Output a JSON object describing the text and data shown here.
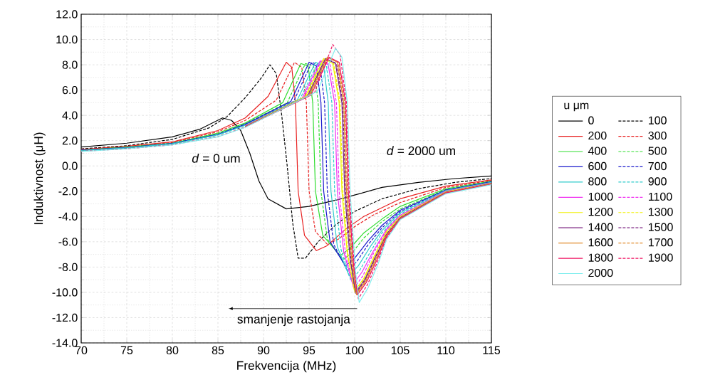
{
  "chart_data": {
    "type": "line",
    "xlabel": "Frekvencija (MHz)",
    "ylabel": "Induktivnost (μH)",
    "legend_title": "u μm",
    "xlim": [
      70,
      115
    ],
    "ylim": [
      -14,
      12
    ],
    "xticks": [
      70,
      75,
      80,
      85,
      90,
      95,
      100,
      105,
      110,
      115
    ],
    "yticks": [
      {
        "value": -14,
        "label": "-14.0"
      },
      {
        "value": -12,
        "label": "-12.0"
      },
      {
        "value": -10,
        "label": "-10.0"
      },
      {
        "value": -8,
        "label": "-8.0"
      },
      {
        "value": -6,
        "label": "-6.0"
      },
      {
        "value": -4,
        "label": "-4.0"
      },
      {
        "value": -2,
        "label": "-2.0"
      },
      {
        "value": 0,
        "label": "0.0"
      },
      {
        "value": 2,
        "label": "2.0"
      },
      {
        "value": 4,
        "label": "4.0"
      },
      {
        "value": 6,
        "label": "6.0"
      },
      {
        "value": 8,
        "label": "8.0"
      },
      {
        "value": 10,
        "label": "10.0"
      },
      {
        "value": 12,
        "label": "12.0"
      }
    ],
    "grid": true,
    "legend": "right",
    "annotations": [
      "*d* = 0 um",
      "*d* = 2000 um",
      "smanjenje rastojanja"
    ],
    "series": [
      {
        "name": "0",
        "color": "#000000",
        "line_style": "solid",
        "x": [
          70,
          75,
          80,
          83,
          85.5,
          86.5,
          87.5,
          88.5,
          89.5,
          90.5,
          92.5,
          95,
          98,
          100,
          103,
          107,
          111,
          115
        ],
        "values": [
          1.5,
          1.8,
          2.3,
          2.9,
          3.8,
          3.6,
          2.8,
          1.0,
          -1.2,
          -2.6,
          -3.4,
          -3.2,
          -2.7,
          -2.3,
          -1.7,
          -1.3,
          -1.0,
          -0.8
        ]
      },
      {
        "name": "100",
        "color": "#000000",
        "line_style": "dashed",
        "x": [
          70,
          75,
          80,
          84,
          86,
          88,
          89.8,
          90.7,
          91.4,
          92,
          92.6,
          93.2,
          93.8,
          94.6,
          96,
          98,
          100,
          103,
          107,
          111,
          115
        ],
        "values": [
          1.35,
          1.6,
          2.1,
          3.0,
          3.9,
          5.4,
          7.0,
          8.0,
          7.3,
          4.0,
          0,
          -4.5,
          -7.3,
          -7.3,
          -6.0,
          -4.6,
          -3.6,
          -2.6,
          -1.8,
          -1.3,
          -1.0
        ]
      },
      {
        "name": "200",
        "color": "#e82020",
        "line_style": "solid",
        "x": [
          70,
          75,
          80,
          85,
          88,
          90.5,
          92.5,
          93.1,
          93.5,
          93.8,
          94.5,
          95.8,
          97,
          99,
          101,
          105,
          110,
          115
        ],
        "values": [
          1.3,
          1.55,
          1.9,
          2.8,
          3.8,
          5.5,
          8.2,
          7.8,
          5.0,
          -2.0,
          -5.5,
          -6.7,
          -6.3,
          -5.0,
          -4.0,
          -2.6,
          -1.6,
          -1.1
        ]
      },
      {
        "name": "300",
        "color": "#e82020",
        "line_style": "dashed",
        "x": [
          70,
          75,
          80,
          85,
          88,
          91.4,
          93.4,
          94.2,
          94.7,
          95.0,
          95.7,
          97.0,
          98.2,
          100,
          102,
          105,
          110,
          115
        ],
        "values": [
          1.28,
          1.5,
          1.85,
          2.7,
          3.6,
          5.2,
          8.2,
          7.8,
          5.0,
          -2.0,
          -5.2,
          -6.2,
          -5.8,
          -4.8,
          -3.9,
          -2.9,
          -1.7,
          -1.15
        ]
      },
      {
        "name": "400",
        "color": "#30dd30",
        "line_style": "solid",
        "x": [
          70,
          75,
          80,
          85,
          88,
          92.1,
          94.1,
          94.9,
          95.4,
          95.7,
          96.5,
          98.4,
          99.5,
          101,
          103,
          105,
          110,
          115
        ],
        "values": [
          1.25,
          1.5,
          1.8,
          2.6,
          3.4,
          5.0,
          8.1,
          7.9,
          5.0,
          -2.0,
          -5.5,
          -7.1,
          -6.5,
          -5.3,
          -4.2,
          -3.2,
          -1.8,
          -1.2
        ]
      },
      {
        "name": "500",
        "color": "#30dd30",
        "line_style": "dashed",
        "x": [
          70,
          75,
          80,
          85,
          88,
          92.6,
          94.6,
          95.5,
          96.0,
          96.3,
          97.0,
          98.7,
          99.7,
          101,
          103,
          105,
          110,
          115
        ],
        "values": [
          1.25,
          1.45,
          1.8,
          2.55,
          3.35,
          5.0,
          8.1,
          7.9,
          5.0,
          -2.0,
          -5.8,
          -7.4,
          -6.9,
          -5.7,
          -4.4,
          -3.4,
          -1.85,
          -1.25
        ]
      },
      {
        "name": "600",
        "color": "#1a1acc",
        "line_style": "solid",
        "x": [
          70,
          75,
          80,
          85,
          88,
          93.0,
          95.0,
          95.8,
          96.3,
          96.6,
          97.3,
          99.0,
          100,
          101.5,
          103,
          105,
          110,
          115
        ],
        "values": [
          1.24,
          1.45,
          1.78,
          2.5,
          3.3,
          5.1,
          8.2,
          7.9,
          5.0,
          -2.0,
          -6.0,
          -7.9,
          -7.3,
          -5.9,
          -4.7,
          -3.5,
          -1.9,
          -1.25
        ]
      },
      {
        "name": "700",
        "color": "#1a1acc",
        "line_style": "dashed",
        "x": [
          70,
          75,
          80,
          85,
          88,
          93.3,
          95.3,
          96.2,
          96.7,
          97.0,
          97.7,
          99.2,
          100.2,
          101.5,
          103,
          105,
          110,
          115
        ],
        "values": [
          1.23,
          1.44,
          1.76,
          2.48,
          3.25,
          5.1,
          8.2,
          7.9,
          5.0,
          -2.0,
          -6.2,
          -8.3,
          -7.6,
          -6.2,
          -4.9,
          -3.6,
          -1.9,
          -1.3
        ]
      },
      {
        "name": "800",
        "color": "#30cccc",
        "line_style": "solid",
        "x": [
          70,
          75,
          80,
          85,
          88,
          93.7,
          95.7,
          96.6,
          97.1,
          97.4,
          98.1,
          99.4,
          100.4,
          101.7,
          103,
          105,
          110,
          115
        ],
        "values": [
          1.22,
          1.43,
          1.75,
          2.46,
          3.22,
          5.2,
          8.2,
          7.9,
          5.0,
          -2.0,
          -6.4,
          -8.7,
          -7.9,
          -6.4,
          -5.1,
          -3.7,
          -1.95,
          -1.3
        ]
      },
      {
        "name": "900",
        "color": "#30cccc",
        "line_style": "dashed",
        "x": [
          70,
          75,
          80,
          85,
          88,
          94.0,
          96.0,
          96.9,
          97.5,
          97.8,
          98.5,
          99.6,
          100.6,
          101.8,
          103,
          105,
          110,
          115
        ],
        "values": [
          1.21,
          1.42,
          1.74,
          2.44,
          3.2,
          5.3,
          8.2,
          7.9,
          5.0,
          -2.0,
          -6.6,
          -9.1,
          -8.2,
          -6.7,
          -5.3,
          -3.8,
          -2.0,
          -1.3
        ]
      },
      {
        "name": "1000",
        "color": "#f030f0",
        "line_style": "solid",
        "x": [
          88,
          94.2,
          96.2,
          97.1,
          97.8,
          98.1,
          98.8,
          99.8,
          100.8,
          102,
          103.5,
          105,
          110,
          115
        ],
        "values": [
          3.18,
          5.3,
          8.3,
          8.0,
          5.0,
          -2.0,
          -6.8,
          -9.4,
          -8.4,
          -6.8,
          -5.0,
          -3.9,
          -2.0,
          -1.35
        ]
      },
      {
        "name": "1100",
        "color": "#f030f0",
        "line_style": "dashed",
        "x": [
          94.4,
          96.4,
          97.3,
          98.0,
          98.3,
          99.0,
          99.9,
          100.9,
          102,
          103.5,
          105,
          110,
          115
        ],
        "values": [
          5.4,
          8.4,
          8.0,
          5.0,
          -2.0,
          -7.0,
          -9.7,
          -8.7,
          -7.0,
          -5.1,
          -3.95,
          -2.05,
          -1.35
        ]
      },
      {
        "name": "1200",
        "color": "#f0f000",
        "line_style": "solid",
        "x": [
          88,
          94.6,
          96.6,
          97.6,
          98.3,
          98.6,
          99.2,
          100.0,
          101.0,
          102.1,
          103.5,
          105,
          110,
          115
        ],
        "values": [
          3.14,
          5.5,
          8.5,
          8.1,
          5.0,
          -2.0,
          -7.0,
          -9.9,
          -8.9,
          -7.2,
          -5.2,
          -4.0,
          -2.05,
          -1.38
        ]
      },
      {
        "name": "1300",
        "color": "#f0f000",
        "line_style": "dashed",
        "x": [
          94.7,
          96.7,
          97.7,
          98.4,
          98.7,
          99.3,
          100.0,
          101.0,
          102.1,
          103.5,
          105,
          110,
          115
        ],
        "values": [
          5.5,
          8.5,
          8.1,
          5.0,
          -2.0,
          -7.2,
          -10.0,
          -9.0,
          -7.3,
          -5.3,
          -4.05,
          -2.08,
          -1.38
        ]
      },
      {
        "name": "1400",
        "color": "#7a2080",
        "line_style": "solid",
        "x": [
          88,
          94.8,
          96.8,
          97.9,
          98.6,
          98.9,
          99.5,
          100.1,
          101.1,
          102.2,
          103.5,
          105,
          110,
          115
        ],
        "values": [
          3.12,
          5.5,
          8.5,
          8.1,
          5.0,
          -2.0,
          -7.4,
          -10.0,
          -9.0,
          -7.3,
          -5.4,
          -4.1,
          -2.1,
          -1.4
        ]
      },
      {
        "name": "1500",
        "color": "#7a2080",
        "line_style": "dashed",
        "x": [
          88,
          94.9,
          96.9,
          98.0,
          98.7,
          99.0,
          99.6,
          100.1,
          101.1,
          102.2,
          103.5,
          105,
          110,
          115
        ],
        "values": [
          3.11,
          5.5,
          8.5,
          8.1,
          5.0,
          -2.0,
          -7.6,
          -10.1,
          -9.1,
          -7.4,
          -5.4,
          -4.1,
          -2.1,
          -1.4
        ]
      },
      {
        "name": "1600",
        "color": "#e08a2a",
        "line_style": "solid",
        "x": [
          88,
          95.0,
          97.0,
          98.1,
          98.8,
          99.1,
          99.7,
          100.2,
          101.2,
          102.3,
          103.5,
          105,
          110,
          115
        ],
        "values": [
          3.1,
          5.6,
          8.6,
          8.2,
          5.0,
          -2.0,
          -7.7,
          -10.1,
          -9.1,
          -7.4,
          -5.5,
          -4.15,
          -2.12,
          -1.42
        ]
      },
      {
        "name": "1700",
        "color": "#e08a2a",
        "line_style": "dashed",
        "x": [
          95.1,
          97.1,
          98.2,
          98.9,
          99.2,
          99.8,
          100.2,
          101.2,
          102.3,
          103.5,
          105,
          110,
          115
        ],
        "values": [
          5.6,
          8.6,
          8.2,
          5.0,
          -2.0,
          -7.9,
          -10.2,
          -9.2,
          -7.5,
          -5.5,
          -4.15,
          -2.12,
          -1.42
        ]
      },
      {
        "name": "1800",
        "color": "#f01060",
        "line_style": "solid",
        "x": [
          88,
          95.2,
          97.2,
          98.3,
          99.0,
          99.3,
          99.9,
          100.3,
          101.3,
          102.4,
          103.5,
          105,
          110,
          115
        ],
        "values": [
          3.08,
          5.6,
          8.6,
          8.2,
          5.0,
          -2.0,
          -8.0,
          -10.2,
          -9.2,
          -7.5,
          -5.6,
          -4.2,
          -2.15,
          -1.45
        ]
      },
      {
        "name": "1900",
        "color": "#f01060",
        "line_style": "dashed",
        "x": [
          70,
          75,
          80,
          85,
          88,
          95.6,
          97.6,
          98.4,
          99.1,
          99.4,
          100.0,
          100.4,
          101.4,
          102.5,
          103.5,
          105,
          110,
          115
        ],
        "values": [
          1.16,
          1.36,
          1.67,
          2.32,
          3.07,
          5.8,
          9.6,
          8.8,
          5.0,
          -2.0,
          -8.2,
          -10.5,
          -9.4,
          -7.6,
          -5.7,
          -4.2,
          -2.15,
          -1.45
        ]
      },
      {
        "name": "2000",
        "color": "#80eeee",
        "line_style": "solid",
        "x": [
          70,
          75,
          80,
          85,
          88,
          95.9,
          97.9,
          98.6,
          99.2,
          99.5,
          100.1,
          100.5,
          101.5,
          102.6,
          103.5,
          105,
          110,
          115
        ],
        "values": [
          1.15,
          1.35,
          1.66,
          2.3,
          3.05,
          5.9,
          9.3,
          8.6,
          5.0,
          -2.0,
          -8.4,
          -10.8,
          -9.6,
          -7.7,
          -5.8,
          -4.25,
          -2.2,
          -1.48
        ]
      }
    ]
  }
}
